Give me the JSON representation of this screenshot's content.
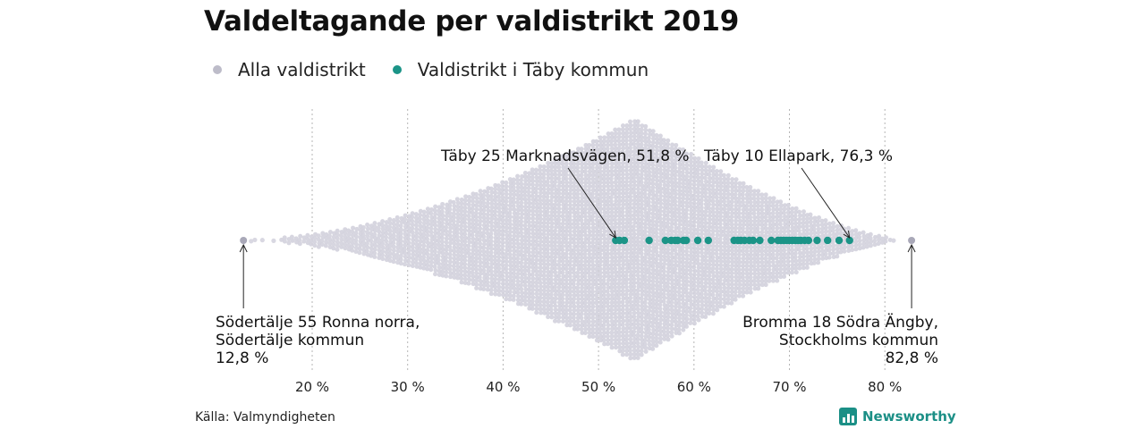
{
  "chart_data": {
    "type": "scatter",
    "title": "Valdeltagande per valdistrikt 2019",
    "legend": [
      {
        "name": "Alla valdistrikt",
        "color": "#c9c8d4"
      },
      {
        "name": "Valdistrikt i Täby kommun",
        "color": "#1b9487"
      }
    ],
    "x_ticks": [
      "20 %",
      "30 %",
      "40 %",
      "50 %",
      "60 %",
      "70 %",
      "80 %"
    ],
    "x_tick_values": [
      20,
      30,
      40,
      50,
      60,
      70,
      80
    ],
    "xlim": [
      10,
      86
    ],
    "grid": "vertical dotted",
    "legend_position": "top-left",
    "series": [
      {
        "name": "Alla valdistrikt",
        "color": "#c9c8d4",
        "distribution": {
          "min": 12.8,
          "max": 82.8,
          "mode": 53.8
        }
      },
      {
        "name": "Valdistrikt i Täby kommun",
        "color": "#1b9487",
        "values": [
          51.8,
          52.2,
          52.7,
          55.3,
          57.0,
          57.6,
          58.0,
          58.3,
          58.9,
          59.2,
          60.4,
          61.5,
          64.2,
          64.6,
          64.9,
          65.3,
          65.8,
          66.2,
          66.9,
          68.1,
          68.8,
          69.1,
          69.4,
          69.7,
          70.0,
          70.3,
          70.6,
          70.9,
          71.2,
          71.6,
          72.0,
          72.9,
          74.0,
          75.2,
          76.3
        ]
      }
    ],
    "annotations": [
      {
        "lines": [
          "Täby 25 Marknadsvägen, 51,8 %"
        ],
        "value": 51.8
      },
      {
        "lines": [
          "Täby 10  Ellapark, 76,3 %"
        ],
        "value": 76.3
      },
      {
        "lines": [
          "Södertälje 55 Ronna norra,",
          "Södertälje kommun",
          "12,8 %"
        ],
        "value": 12.8
      },
      {
        "lines": [
          "Bromma 18 Södra Ängby,",
          "Stockholms kommun",
          "82,8 %"
        ],
        "value": 82.8
      }
    ]
  },
  "source": "Källa: Valmyndigheten",
  "brand": "Newsworthy"
}
